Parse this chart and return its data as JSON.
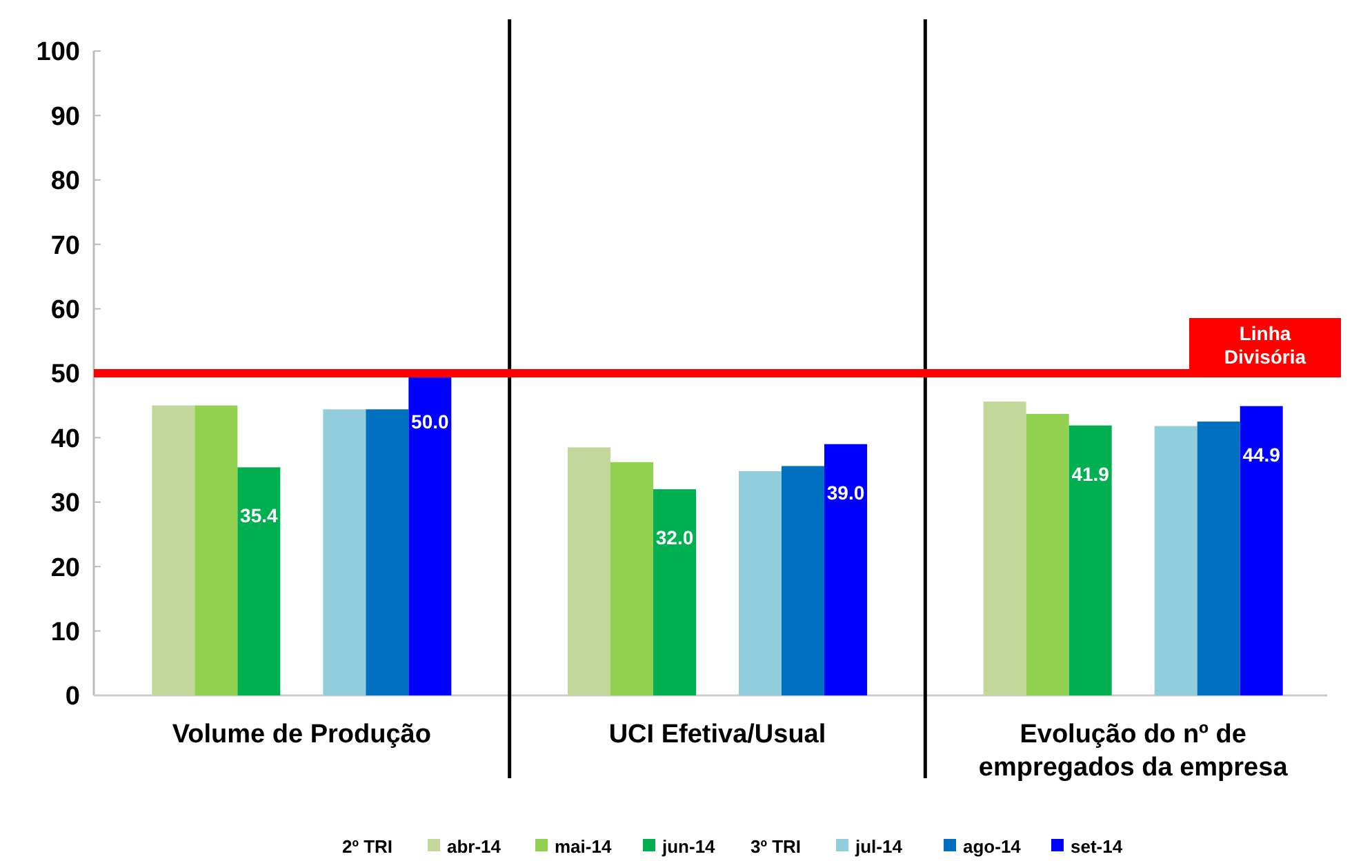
{
  "chart_data": {
    "type": "bar",
    "categories": [
      "Volume de Produção",
      "UCI Efetiva/Usual",
      "Evolução do nº de empregados da empresa"
    ],
    "series": [
      {
        "name": "abr-14",
        "color": "#c4d79b",
        "values": [
          45.0,
          38.5,
          45.6
        ]
      },
      {
        "name": "mai-14",
        "color": "#92d050",
        "values": [
          45.0,
          36.2,
          43.7
        ]
      },
      {
        "name": "jun-14",
        "color": "#00b050",
        "values": [
          35.4,
          32.0,
          41.9
        ],
        "value_labels": [
          "35.4",
          "32.0",
          "41.9"
        ]
      },
      {
        "name": "jul-14",
        "color": "#92cddc",
        "values": [
          44.4,
          34.8,
          41.8
        ]
      },
      {
        "name": "ago-14",
        "color": "#0070c0",
        "values": [
          44.4,
          35.6,
          42.5
        ]
      },
      {
        "name": "set-14",
        "color": "#0000ff",
        "values": [
          50.0,
          39.0,
          44.9
        ],
        "value_labels": [
          "50.0",
          "39.0",
          "44.9"
        ]
      }
    ],
    "ylim": [
      0,
      100
    ],
    "yticks": [
      0,
      10,
      20,
      30,
      40,
      50,
      60,
      70,
      80,
      90,
      100
    ],
    "grid": false,
    "legend": "bottom",
    "ref_lines": [
      {
        "axis": "y",
        "value": 50,
        "label": "Linha Divisória",
        "color": "#ff0000"
      }
    ],
    "annotations": [
      "2º TRI",
      "3º TRI"
    ]
  }
}
